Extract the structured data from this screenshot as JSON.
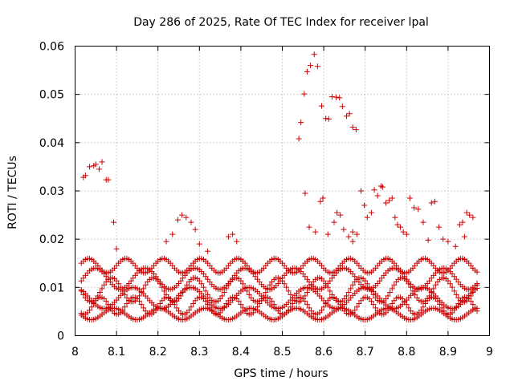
{
  "chart_data": {
    "type": "scatter",
    "title": "Day 286 of 2025, Rate Of TEC Index for receiver lpal",
    "xlabel": "GPS time / hours",
    "ylabel": "ROTI / TECUs",
    "xlim": [
      8,
      9
    ],
    "ylim": [
      0,
      0.06
    ],
    "xticks": [
      8,
      8.1,
      8.2,
      8.3,
      8.4,
      8.5,
      8.6,
      8.7,
      8.8,
      8.9,
      9
    ],
    "xtick_labels": [
      "8",
      "8.1",
      "8.2",
      "8.3",
      "8.4",
      "8.5",
      "8.6",
      "8.7",
      "8.8",
      "8.9",
      "9"
    ],
    "yticks": [
      0,
      0.01,
      0.02,
      0.03,
      0.04,
      0.05,
      0.06
    ],
    "ytick_labels": [
      "0",
      "0.01",
      "0.02",
      "0.03",
      "0.04",
      "0.05",
      "0.06"
    ],
    "grid": true,
    "marker": "+",
    "color": "#cc0000",
    "series": [
      {
        "name": "ROTI",
        "points": [
          [
            8.02,
            0.0328
          ],
          [
            8.025,
            0.0332
          ],
          [
            8.035,
            0.035
          ],
          [
            8.045,
            0.0352
          ],
          [
            8.05,
            0.0355
          ],
          [
            8.058,
            0.0345
          ],
          [
            8.065,
            0.036
          ],
          [
            8.075,
            0.0323
          ],
          [
            8.08,
            0.0323
          ],
          [
            8.093,
            0.0235
          ],
          [
            8.1,
            0.018
          ],
          [
            8.54,
            0.0408
          ],
          [
            8.545,
            0.0442
          ],
          [
            8.553,
            0.0501
          ],
          [
            8.56,
            0.0547
          ],
          [
            8.568,
            0.056
          ],
          [
            8.577,
            0.0583
          ],
          [
            8.585,
            0.0558
          ],
          [
            8.595,
            0.0476
          ],
          [
            8.605,
            0.045
          ],
          [
            8.612,
            0.0449
          ],
          [
            8.62,
            0.0495
          ],
          [
            8.63,
            0.0494
          ],
          [
            8.638,
            0.0493
          ],
          [
            8.645,
            0.0475
          ],
          [
            8.655,
            0.0455
          ],
          [
            8.662,
            0.046
          ],
          [
            8.67,
            0.0432
          ],
          [
            8.678,
            0.0427
          ],
          [
            8.22,
            0.0195
          ],
          [
            8.235,
            0.021
          ],
          [
            8.248,
            0.024
          ],
          [
            8.258,
            0.025
          ],
          [
            8.268,
            0.0245
          ],
          [
            8.28,
            0.0235
          ],
          [
            8.29,
            0.022
          ],
          [
            8.3,
            0.019
          ],
          [
            8.32,
            0.0175
          ],
          [
            8.37,
            0.0205
          ],
          [
            8.38,
            0.021
          ],
          [
            8.39,
            0.0195
          ],
          [
            8.565,
            0.0225
          ],
          [
            8.58,
            0.0215
          ],
          [
            8.592,
            0.0278
          ],
          [
            8.598,
            0.0285
          ],
          [
            8.61,
            0.021
          ],
          [
            8.625,
            0.0235
          ],
          [
            8.632,
            0.0255
          ],
          [
            8.64,
            0.025
          ],
          [
            8.648,
            0.022
          ],
          [
            8.66,
            0.0205
          ],
          [
            8.67,
            0.0215
          ],
          [
            8.68,
            0.021
          ],
          [
            8.69,
            0.03
          ],
          [
            8.698,
            0.027
          ],
          [
            8.705,
            0.0245
          ],
          [
            8.715,
            0.0255
          ],
          [
            8.722,
            0.0302
          ],
          [
            8.73,
            0.029
          ],
          [
            8.738,
            0.031
          ],
          [
            8.742,
            0.0308
          ],
          [
            8.75,
            0.0275
          ],
          [
            8.758,
            0.028
          ],
          [
            8.765,
            0.0285
          ],
          [
            8.772,
            0.0245
          ],
          [
            8.778,
            0.023
          ],
          [
            8.785,
            0.0225
          ],
          [
            8.792,
            0.0215
          ],
          [
            8.8,
            0.021
          ],
          [
            8.808,
            0.0285
          ],
          [
            8.818,
            0.0265
          ],
          [
            8.828,
            0.0262
          ],
          [
            8.84,
            0.0235
          ],
          [
            8.852,
            0.0198
          ],
          [
            8.86,
            0.0275
          ],
          [
            8.868,
            0.0278
          ],
          [
            8.878,
            0.0225
          ],
          [
            8.888,
            0.02
          ],
          [
            8.9,
            0.0195
          ],
          [
            8.918,
            0.0185
          ],
          [
            8.928,
            0.023
          ],
          [
            8.935,
            0.0235
          ],
          [
            8.94,
            0.0205
          ],
          [
            8.945,
            0.0255
          ],
          [
            8.952,
            0.025
          ],
          [
            8.96,
            0.0245
          ],
          [
            8.555,
            0.0295
          ],
          [
            8.67,
            0.0195
          ]
        ]
      }
    ],
    "dense_band": {
      "x_start": 8.015,
      "x_end": 8.97,
      "step": 0.005,
      "tracks": [
        {
          "center": 0.0145,
          "amplitude": 0.0015,
          "period": 0.09,
          "phase": 0.0
        },
        {
          "center": 0.0118,
          "amplitude": 0.0022,
          "period": 0.12,
          "phase": 1.1
        },
        {
          "center": 0.0095,
          "amplitude": 0.0025,
          "period": 0.1,
          "phase": 2.3
        },
        {
          "center": 0.0078,
          "amplitude": 0.0022,
          "period": 0.14,
          "phase": 0.7
        },
        {
          "center": 0.0062,
          "amplitude": 0.0018,
          "period": 0.08,
          "phase": 3.0
        },
        {
          "center": 0.0045,
          "amplitude": 0.0012,
          "period": 0.11,
          "phase": 4.2
        }
      ]
    }
  }
}
